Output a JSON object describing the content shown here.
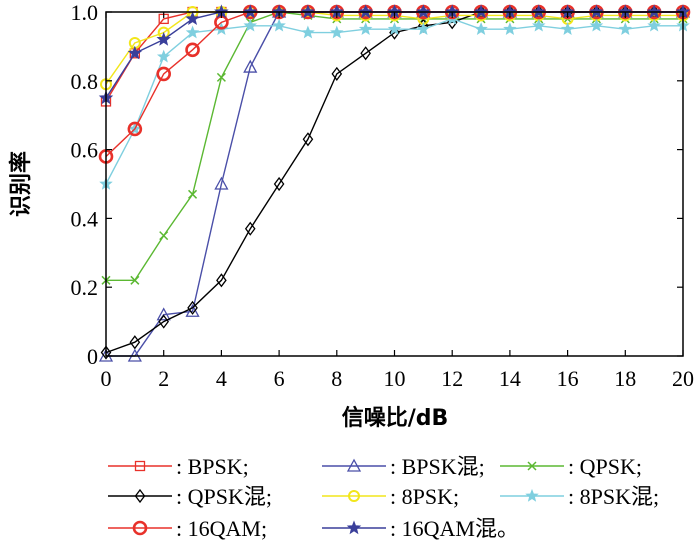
{
  "chart_data": {
    "type": "line",
    "title": "",
    "xlabel": "信噪比/dB",
    "ylabel": "识别率",
    "xlim": [
      0,
      20
    ],
    "ylim": [
      0,
      1.0
    ],
    "x_ticks": [
      "0",
      "2",
      "4",
      "6",
      "8",
      "10",
      "12",
      "14",
      "16",
      "18",
      "20"
    ],
    "y_ticks": [
      "0",
      "0.2",
      "0.4",
      "0.6",
      "0.8",
      "1.0"
    ],
    "grid": false,
    "legend_placement": "bottom",
    "x": [
      0,
      1,
      2,
      3,
      4,
      5,
      6,
      7,
      8,
      9,
      10,
      11,
      12,
      13,
      14,
      15,
      16,
      17,
      18,
      19,
      20
    ],
    "series": [
      {
        "name": ": BPSK;",
        "color": "#e8312a",
        "marker": "square",
        "values": [
          0.74,
          0.88,
          0.98,
          1.0,
          1.0,
          1.0,
          1.0,
          1.0,
          1.0,
          1.0,
          1.0,
          1.0,
          1.0,
          1.0,
          1.0,
          1.0,
          1.0,
          1.0,
          1.0,
          1.0,
          1.0
        ]
      },
      {
        "name": ": BPSK混;",
        "color": "#4a4fa8",
        "marker": "triangle",
        "values": [
          0.0,
          0.0,
          0.12,
          0.13,
          0.5,
          0.84,
          1.0,
          1.0,
          1.0,
          1.0,
          1.0,
          1.0,
          1.0,
          1.0,
          1.0,
          1.0,
          1.0,
          1.0,
          1.0,
          1.0,
          1.0
        ]
      },
      {
        "name": ": QPSK;",
        "color": "#5bb832",
        "marker": "x",
        "values": [
          0.22,
          0.22,
          0.35,
          0.47,
          0.81,
          0.97,
          1.0,
          0.99,
          0.98,
          0.98,
          0.98,
          0.98,
          0.98,
          0.98,
          0.98,
          0.98,
          0.98,
          0.98,
          0.98,
          0.98,
          0.98
        ]
      },
      {
        "name": ": QPSK混;",
        "color": "#000000",
        "marker": "diamond",
        "values": [
          0.01,
          0.04,
          0.1,
          0.14,
          0.22,
          0.37,
          0.5,
          0.63,
          0.82,
          0.88,
          0.94,
          0.96,
          0.97,
          1.0,
          1.0,
          1.0,
          1.0,
          1.0,
          1.0,
          1.0,
          1.0
        ]
      },
      {
        "name": ": 8PSK;",
        "color": "#f2e61b",
        "marker": "circle",
        "values": [
          0.79,
          0.91,
          0.94,
          1.0,
          1.0,
          1.0,
          1.0,
          1.0,
          0.99,
          0.99,
          0.99,
          0.98,
          0.99,
          0.99,
          0.99,
          0.99,
          0.98,
          0.99,
          0.99,
          0.99,
          0.99
        ]
      },
      {
        "name": ": 8PSK混;",
        "color": "#7fcfdf",
        "marker": "star",
        "values": [
          0.5,
          0.66,
          0.87,
          0.94,
          0.95,
          0.96,
          0.96,
          0.94,
          0.94,
          0.95,
          0.95,
          0.95,
          0.98,
          0.95,
          0.95,
          0.96,
          0.95,
          0.96,
          0.95,
          0.96,
          0.96
        ]
      },
      {
        "name": ": 16QAM;",
        "color": "#e8312a",
        "marker": "circle-thick",
        "values": [
          0.58,
          0.66,
          0.82,
          0.89,
          0.97,
          1.0,
          1.0,
          1.0,
          1.0,
          1.0,
          1.0,
          1.0,
          1.0,
          1.0,
          1.0,
          1.0,
          1.0,
          1.0,
          1.0,
          1.0,
          1.0
        ]
      },
      {
        "name": ": 16QAM混。",
        "color": "#3a3f9a",
        "marker": "star-filled",
        "values": [
          0.75,
          0.88,
          0.92,
          0.98,
          1.0,
          1.0,
          1.0,
          1.0,
          1.0,
          1.0,
          1.0,
          1.0,
          1.0,
          1.0,
          1.0,
          1.0,
          1.0,
          1.0,
          1.0,
          1.0,
          1.0
        ]
      }
    ]
  }
}
